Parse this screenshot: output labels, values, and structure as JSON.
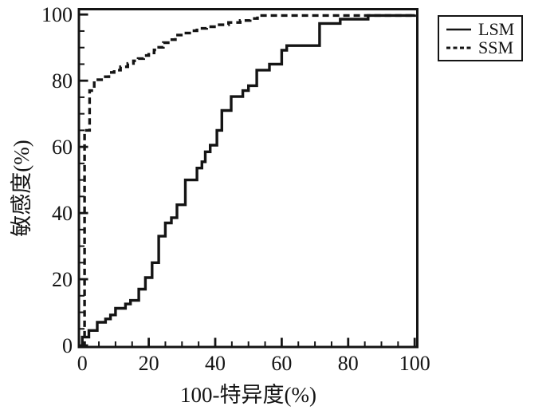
{
  "figure": {
    "background": "#ffffff",
    "ink_color": "#141414"
  },
  "chart_data": {
    "type": "line",
    "subtype": "roc-step-curves",
    "title": "",
    "xlabel": "100-特异度(%)",
    "ylabel": "敏感度(%)",
    "xlim": [
      0,
      100
    ],
    "ylim": [
      0,
      100
    ],
    "x_ticks": [
      0,
      20,
      40,
      60,
      80,
      100
    ],
    "y_ticks": [
      0,
      20,
      40,
      60,
      80,
      100
    ],
    "minor_tick_step": 5,
    "grid": false,
    "legend": {
      "position": "top-right-outside",
      "entries": [
        {
          "label": "LSM",
          "line_style": "solid"
        },
        {
          "label": "SSM",
          "line_style": "dashed"
        }
      ]
    },
    "series": [
      {
        "name": "LSM",
        "line_style": "solid",
        "color": "#141414",
        "points": [
          [
            0,
            0
          ],
          [
            0,
            2.5
          ],
          [
            2,
            2.5
          ],
          [
            2,
            4.5
          ],
          [
            4.5,
            4.5
          ],
          [
            4.5,
            7
          ],
          [
            7,
            7
          ],
          [
            7,
            8
          ],
          [
            8.5,
            8
          ],
          [
            8.5,
            9.2
          ],
          [
            10,
            9.2
          ],
          [
            10,
            11.2
          ],
          [
            13,
            11.2
          ],
          [
            13,
            12.5
          ],
          [
            14.5,
            12.5
          ],
          [
            14.5,
            13.6
          ],
          [
            17,
            13.6
          ],
          [
            17,
            17
          ],
          [
            19,
            17
          ],
          [
            19,
            20.5
          ],
          [
            21,
            20.5
          ],
          [
            21,
            25
          ],
          [
            23,
            25
          ],
          [
            23,
            33
          ],
          [
            25,
            33
          ],
          [
            25,
            37
          ],
          [
            26.8,
            37
          ],
          [
            26.8,
            38.6
          ],
          [
            28.5,
            38.6
          ],
          [
            28.5,
            42.5
          ],
          [
            31,
            42.5
          ],
          [
            31,
            50
          ],
          [
            34.5,
            50
          ],
          [
            34.5,
            53.6
          ],
          [
            36,
            53.6
          ],
          [
            36,
            55.5
          ],
          [
            37,
            55.5
          ],
          [
            37,
            58.5
          ],
          [
            38.5,
            58.5
          ],
          [
            38.5,
            60.5
          ],
          [
            40.5,
            60.5
          ],
          [
            40.5,
            65
          ],
          [
            42,
            65
          ],
          [
            42,
            71
          ],
          [
            44.8,
            71
          ],
          [
            44.8,
            75.2
          ],
          [
            48.3,
            75.2
          ],
          [
            48.3,
            77
          ],
          [
            50,
            77
          ],
          [
            50,
            78.5
          ],
          [
            52.5,
            78.5
          ],
          [
            52.5,
            83.2
          ],
          [
            56.3,
            83.2
          ],
          [
            56.3,
            85
          ],
          [
            60,
            85
          ],
          [
            60,
            89.2
          ],
          [
            61.5,
            89.2
          ],
          [
            61.5,
            90.6
          ],
          [
            71.4,
            90.6
          ],
          [
            71.4,
            97.3
          ],
          [
            77.6,
            97.3
          ],
          [
            77.6,
            98.6
          ],
          [
            86,
            98.6
          ],
          [
            86,
            99.7
          ],
          [
            100,
            99.7
          ],
          [
            100,
            100
          ]
        ]
      },
      {
        "name": "SSM",
        "line_style": "dashed",
        "color": "#141414",
        "points": [
          [
            0,
            0
          ],
          [
            0.7,
            0
          ],
          [
            0.7,
            65
          ],
          [
            2.2,
            65
          ],
          [
            2.2,
            77
          ],
          [
            3.6,
            77
          ],
          [
            3.6,
            80.3
          ],
          [
            6.5,
            80.3
          ],
          [
            6.5,
            81.2
          ],
          [
            8,
            81.2
          ],
          [
            8,
            82.5
          ],
          [
            9.6,
            82.5
          ],
          [
            9.6,
            83.2
          ],
          [
            11.5,
            83.2
          ],
          [
            11.5,
            84.2
          ],
          [
            13.7,
            84.2
          ],
          [
            13.7,
            85.2
          ],
          [
            15.4,
            85.2
          ],
          [
            15.4,
            86
          ],
          [
            16.8,
            86
          ],
          [
            16.8,
            86.7
          ],
          [
            18.5,
            86.7
          ],
          [
            18.5,
            87.6
          ],
          [
            20,
            87.6
          ],
          [
            20,
            88.4
          ],
          [
            21.6,
            88.4
          ],
          [
            21.6,
            89.3
          ],
          [
            23,
            89.3
          ],
          [
            23,
            90.1
          ],
          [
            24.4,
            90.1
          ],
          [
            24.4,
            91.5
          ],
          [
            26.4,
            91.5
          ],
          [
            26.4,
            92.4
          ],
          [
            28,
            92.4
          ],
          [
            28,
            93.8
          ],
          [
            30.4,
            93.8
          ],
          [
            30.4,
            94.4
          ],
          [
            32.8,
            94.4
          ],
          [
            32.8,
            95.1
          ],
          [
            34.5,
            95.1
          ],
          [
            34.5,
            95.8
          ],
          [
            37.4,
            95.8
          ],
          [
            37.4,
            96.3
          ],
          [
            40.3,
            96.3
          ],
          [
            40.3,
            96.9
          ],
          [
            44,
            96.9
          ],
          [
            44,
            97.6
          ],
          [
            47.5,
            97.6
          ],
          [
            47.5,
            98.2
          ],
          [
            50.5,
            98.2
          ],
          [
            50.5,
            98.8
          ],
          [
            52.7,
            98.8
          ],
          [
            52.7,
            99.7
          ],
          [
            100,
            99.7
          ],
          [
            100,
            100
          ]
        ]
      }
    ]
  }
}
